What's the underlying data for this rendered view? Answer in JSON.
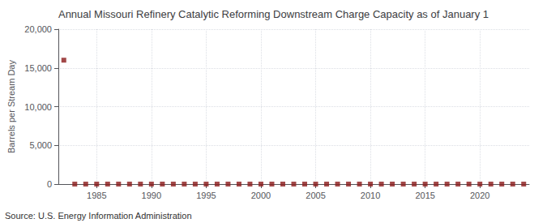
{
  "chart_data": {
    "type": "scatter",
    "title": "Annual Missouri Refinery Catalytic Reforming Downstream Charge Capacity as of January 1",
    "ylabel": "Barrels per Stream Day",
    "annotation": "Source: U.S. Energy Information Administration",
    "x": [
      1982,
      1983,
      1984,
      1985,
      1986,
      1987,
      1988,
      1989,
      1990,
      1991,
      1992,
      1993,
      1994,
      1995,
      1996,
      1997,
      1998,
      1999,
      2000,
      2001,
      2002,
      2003,
      2004,
      2005,
      2006,
      2007,
      2008,
      2009,
      2010,
      2011,
      2012,
      2013,
      2014,
      2015,
      2016,
      2017,
      2018,
      2019,
      2020,
      2021,
      2022,
      2023,
      2024
    ],
    "values": [
      16000,
      0,
      0,
      0,
      0,
      0,
      0,
      0,
      0,
      0,
      0,
      0,
      0,
      0,
      0,
      0,
      0,
      0,
      0,
      0,
      0,
      0,
      0,
      0,
      0,
      0,
      0,
      0,
      0,
      0,
      0,
      0,
      0,
      0,
      0,
      0,
      0,
      0,
      0,
      0,
      0,
      0,
      0
    ],
    "color": "#8b1a1a",
    "marker": "square",
    "xlim": [
      1981.5,
      2024.5
    ],
    "xticks": [
      1985,
      1990,
      1995,
      2000,
      2005,
      2010,
      2015,
      2020
    ],
    "ylim": [
      0,
      20000
    ],
    "yticks": [
      0,
      {
        "value": 5000,
        "label": "5,000"
      },
      {
        "value": 10000,
        "label": "10,000"
      },
      {
        "value": 15000,
        "label": "15,000"
      },
      {
        "value": 20000,
        "label": "20,000"
      }
    ],
    "grid": true
  }
}
